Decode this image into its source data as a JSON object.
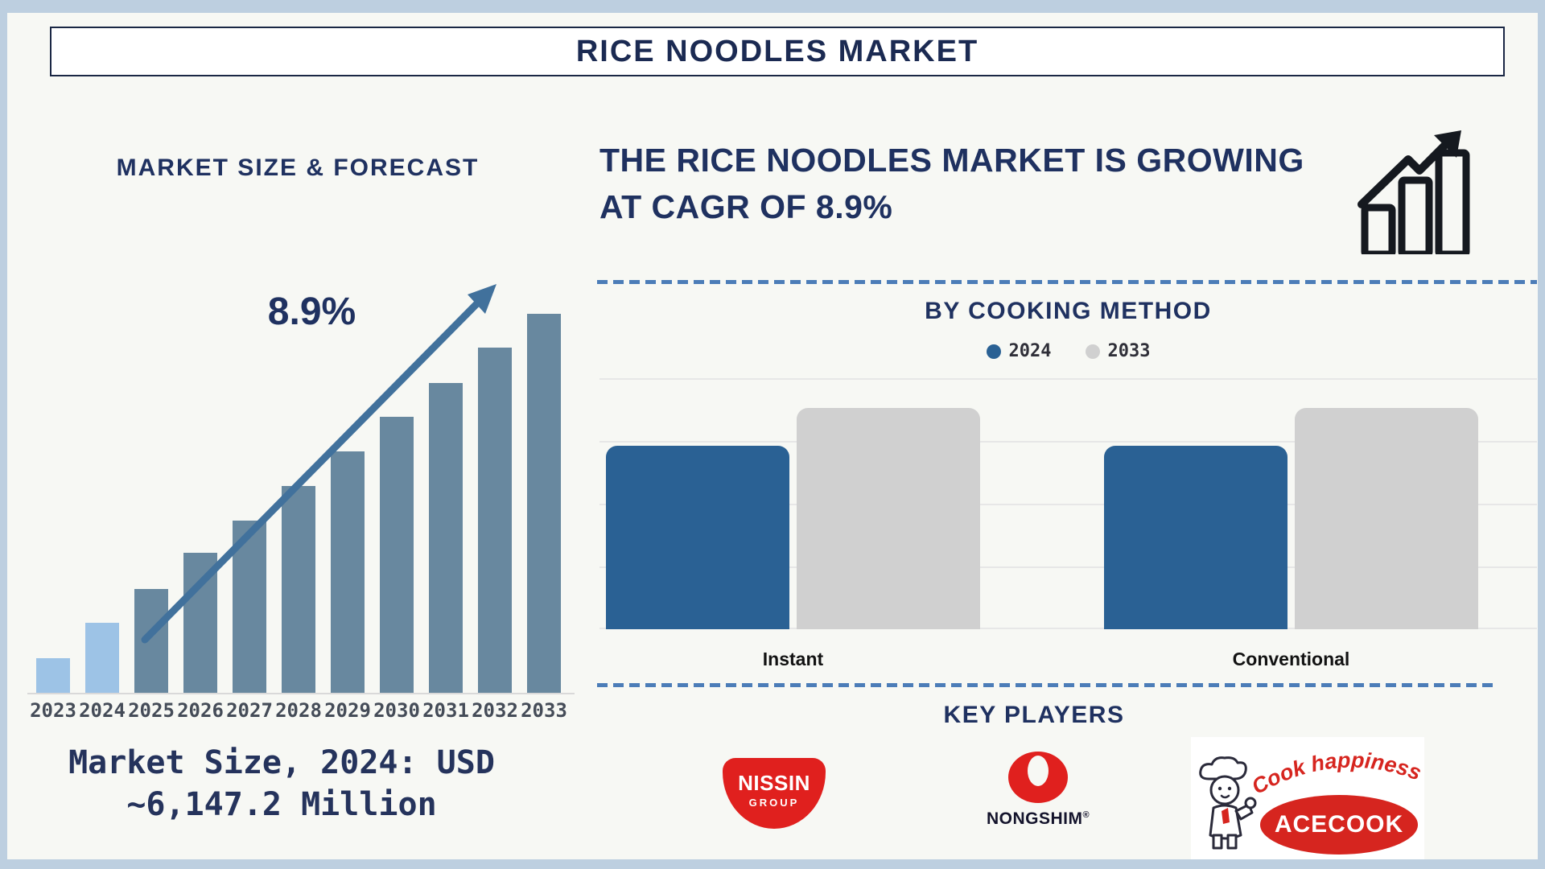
{
  "frame": {
    "title": "RICE NOODLES MARKET"
  },
  "market_size_panel": {
    "heading": "MARKET SIZE & FORECAST",
    "cagr_annotation": "8.9%",
    "note_line1": "Market Size, 2024: USD",
    "note_line2": "~6,147.2 Million"
  },
  "growth_banner": {
    "line1": "THE RICE NOODLES MARKET IS GROWING",
    "line2": "AT CAGR OF 8.9%"
  },
  "cooking_method_panel": {
    "heading": "BY COOKING METHOD"
  },
  "key_players_panel": {
    "heading": "KEY PLAYERS",
    "nissin": {
      "name": "NISSIN",
      "sub": "GROUP"
    },
    "nongshim": {
      "name": "NONGSHIM",
      "reg_mark": "®"
    },
    "acecook": {
      "tagline": "Cook happiness",
      "name": "ACECOOK"
    }
  },
  "chart_data": [
    {
      "type": "bar",
      "title": "MARKET SIZE & FORECAST",
      "categories": [
        "2023",
        "2024",
        "2025",
        "2026",
        "2027",
        "2028",
        "2029",
        "2030",
        "2031",
        "2032",
        "2033"
      ],
      "values_relative_pct": [
        9.3,
        18.6,
        27.5,
        37.1,
        45.6,
        54.7,
        63.8,
        72.9,
        81.8,
        91.1,
        100
      ],
      "bar_colors": [
        "#9DC3E6",
        "#9DC3E6",
        "#68889F",
        "#68889F",
        "#68889F",
        "#68889F",
        "#68889F",
        "#68889F",
        "#68889F",
        "#68889F",
        "#68889F"
      ],
      "annotation": "8.9%",
      "known_point": {
        "category": "2024",
        "value_usd_million": 6147.2
      },
      "cagr_pct": 8.9,
      "xlabel": "",
      "ylabel": "",
      "y_axis_labels_shown": false,
      "trend_arrow": true,
      "grid": false
    },
    {
      "type": "bar",
      "title": "BY COOKING METHOD",
      "categories": [
        "Instant",
        "Conventional"
      ],
      "series": [
        {
          "name": "2024",
          "color": "#2A6194",
          "values_relative_pct": [
            73,
            73
          ]
        },
        {
          "name": "2033",
          "color": "#D0D0D0",
          "values_relative_pct": [
            88,
            88
          ]
        }
      ],
      "legend_position": "top",
      "y_axis_labels_shown": false,
      "grid": true
    }
  ],
  "colors": {
    "navy_text": "#1F3160",
    "title_text": "#1B2A52",
    "forecast_bar_steel": "#68889F",
    "forecast_bar_light": "#9DC3E6",
    "trend_arrow": "#41719C",
    "cooking_2024_blue": "#2A6194",
    "cooking_2033_gray": "#D0D0D0",
    "dashed_divider": "#4C7DB8",
    "outer_frame": "#BDCFE0",
    "canvas_bg": "#F7F8F4",
    "logo_red": "#E0201E",
    "acecook_red": "#D6251F",
    "growth_icon_black": "#15191F"
  }
}
